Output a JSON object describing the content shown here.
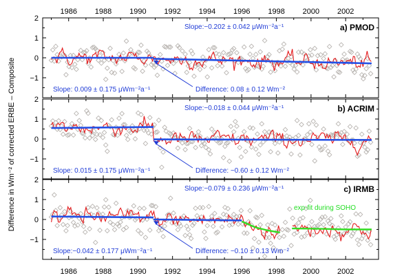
{
  "chart_data": {
    "type": "scatter",
    "ylabel": "Difference in Wm⁻² of corrected ERBE – Composite",
    "xlim": [
      1984.5,
      2003.9
    ],
    "ylim": [
      -2,
      2
    ],
    "x_ticks": [
      1986,
      1988,
      1990,
      1992,
      1994,
      1996,
      1998,
      2000,
      2002
    ],
    "x_tick_labels": [
      "1986",
      "1988",
      "1990",
      "1992",
      "1994",
      "1996",
      "1998",
      "2000",
      "2002"
    ],
    "y_ticks": [
      -1,
      0,
      1,
      2
    ],
    "y_tick_labels": [
      "−1",
      "0",
      "1",
      "2"
    ],
    "colors": {
      "scatter_marker": "#b8b4b0",
      "smoothed_curve": "#e41a1c",
      "trend_line": "#2250e6",
      "annotation": "#1f3bd6",
      "exp_fit": "#33dd22"
    },
    "panels": [
      {
        "title": "a) PMOD",
        "trend_after_label": "Slope:−0.202 ± 0.042 μWm⁻²a⁻¹",
        "trend_before_label": "Slope: 0.009 ± 0.175 μWm⁻²a⁻¹",
        "difference_label": "Difference:  0.08 ±  0.12 Wm⁻²",
        "segments": [
          {
            "x": [
              1985.0,
              1990.9
            ],
            "y": [
              0.0,
              0.0
            ]
          },
          {
            "x": [
              1990.9,
              2003.5
            ],
            "y": [
              -0.05,
              -0.28
            ]
          }
        ],
        "smooth_noise": 0.28,
        "scatter_noise": 0.55
      },
      {
        "title": "b) ACRIM",
        "trend_after_label": "Slope:−0.018 ± 0.044 μWm⁻²a⁻¹",
        "trend_before_label": "Slope: 0.015 ± 0.175 μWm⁻²a⁻¹",
        "difference_label": "Difference:  −0.60 ±  0.12 Wm⁻²",
        "segments": [
          {
            "x": [
              1985.0,
              1990.9
            ],
            "y": [
              0.55,
              0.6
            ]
          },
          {
            "x": [
              1990.9,
              2003.5
            ],
            "y": [
              -0.02,
              -0.05
            ]
          }
        ],
        "smooth_noise": 0.28,
        "scatter_noise": 0.55
      },
      {
        "title": "c) IRMB",
        "trend_after_label": "Slope:−0.079 ± 0.236 μWm⁻²a⁻¹",
        "trend_before_label": "Slope:−0.042 ± 0.177 μWm⁻²a⁻¹",
        "difference_label": "Difference:  −0.10 ±  0.13 Wm⁻²",
        "exp_fit_label": "exp-fit during SOHO",
        "segments": [
          {
            "x": [
              1985.0,
              1990.9
            ],
            "y": [
              0.15,
              0.1
            ]
          },
          {
            "x": [
              1990.9,
              1996.0
            ],
            "y": [
              0.0,
              -0.05
            ]
          }
        ],
        "exp_fit": [
          {
            "x": [
              1996.0,
              1996.8,
              1997.5,
              1998.2
            ],
            "y": [
              -0.1,
              -0.4,
              -0.55,
              -0.65
            ]
          },
          {
            "x": [
              1998.9,
              2000.5,
              2002.0,
              2003.5
            ],
            "y": [
              -0.45,
              -0.47,
              -0.5,
              -0.5
            ]
          }
        ],
        "smooth_noise": 0.3,
        "scatter_noise": 0.6
      }
    ]
  }
}
